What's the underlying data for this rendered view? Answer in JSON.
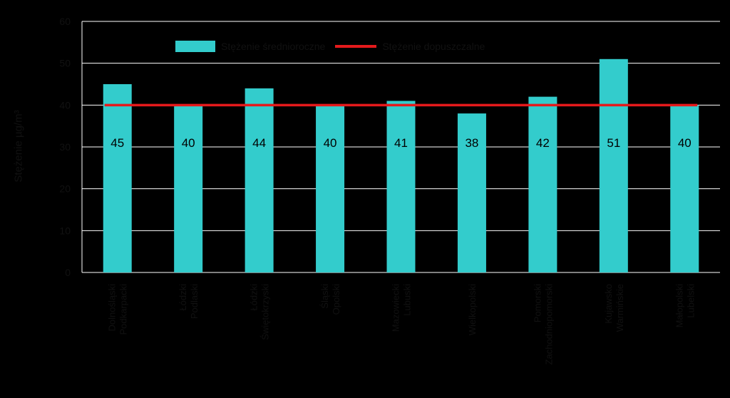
{
  "chart_data": {
    "type": "bar",
    "categories": [
      "Dolnośląski Podkarpacki",
      "Łódzki Podlaski",
      "Łódzki Świętokrzyski",
      "Śląski Opolski",
      "Mazowiecki Lubuski",
      "Wielkopolski",
      "Pomorski Zachodniopomorski",
      "Kujawsko Warmińskie",
      "Małopolski Lubelski"
    ],
    "series": [
      {
        "name": "Stężenie średnioroczne",
        "kind": "bar",
        "color": "#33CCCC",
        "values": [
          45,
          40,
          44,
          40,
          41,
          38,
          42,
          51,
          40
        ]
      },
      {
        "name": "Stężenie dopuszczalne",
        "kind": "line",
        "color": "#E41A1C",
        "values": [
          40,
          40,
          40,
          40,
          40,
          40,
          40,
          40,
          40
        ]
      }
    ],
    "data_labels": [
      "45",
      "40",
      "44",
      "40",
      "41",
      "38",
      "42",
      "51",
      "40"
    ],
    "ylabel": "Stężenie µg/m³",
    "ylim": [
      0,
      60
    ],
    "yticks": [
      0,
      10,
      20,
      30,
      40,
      50,
      60
    ],
    "grid": true,
    "legend": "top"
  }
}
